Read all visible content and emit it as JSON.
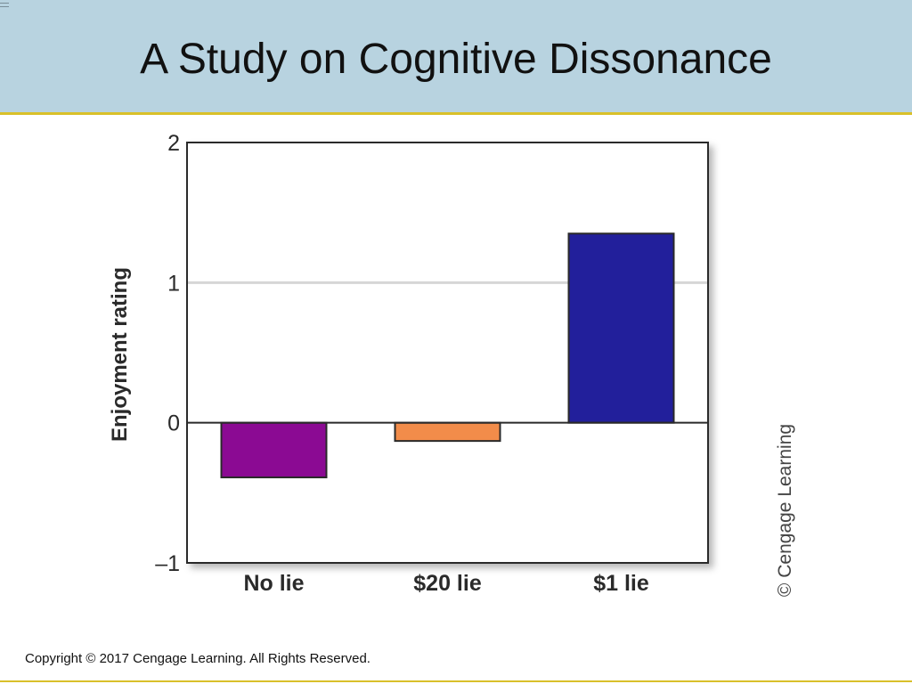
{
  "slide": {
    "title": "A Study on Cognitive Dissonance",
    "copyright": "Copyright © 2017 Cengage Learning. All Rights Reserved.",
    "side_credit": "© Cengage Learning"
  },
  "colors": {
    "header_band": "#b8d3e0",
    "accent_rule": "#d9c02a",
    "no_lie": "#8b0a93",
    "twenty_lie": "#f28c4a",
    "one_lie": "#221f9b"
  },
  "chart_data": {
    "type": "bar",
    "categories": [
      "No lie",
      "$20 lie",
      "$1 lie"
    ],
    "values": [
      -0.39,
      -0.13,
      1.35
    ],
    "bar_colors": [
      "#8b0a93",
      "#f28c4a",
      "#221f9b"
    ],
    "title": "",
    "xlabel": "",
    "ylabel": "Enjoyment rating",
    "ylim": [
      -1,
      2
    ],
    "yticks": [
      2,
      1,
      0,
      -1
    ],
    "ytick_labels": [
      "2",
      "1",
      "0",
      "–1"
    ],
    "gridlines": [
      1
    ],
    "zero_line": 0,
    "legend": "none"
  }
}
